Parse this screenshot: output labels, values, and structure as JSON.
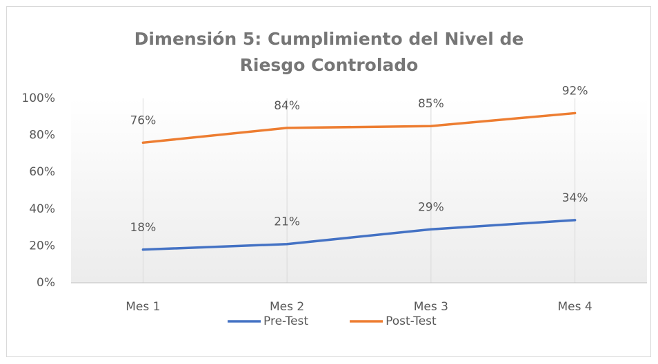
{
  "chart_data": {
    "type": "line",
    "title": "Dimensión 5: Cumplimiento del Nivel de Riesgo Controlado",
    "categories": [
      "Mes 1",
      "Mes 2",
      "Mes 3",
      "Mes 4"
    ],
    "series": [
      {
        "name": "Pre-Test",
        "color": "#4472c4",
        "values": [
          18,
          21,
          29,
          34
        ],
        "value_labels": [
          "18%",
          "21%",
          "29%",
          "34%"
        ]
      },
      {
        "name": "Post-Test",
        "color": "#ed7d31",
        "values": [
          76,
          84,
          85,
          92
        ],
        "value_labels": [
          "76%",
          "84%",
          "85%",
          "92%"
        ]
      }
    ],
    "ylim": [
      0,
      100
    ],
    "yticks": [
      {
        "value": 0,
        "label": "0%"
      },
      {
        "value": 20,
        "label": "20%"
      },
      {
        "value": 40,
        "label": "40%"
      },
      {
        "value": 60,
        "label": "60%"
      },
      {
        "value": 80,
        "label": "80%"
      },
      {
        "value": 100,
        "label": "100%"
      }
    ],
    "grid": "x",
    "legend": "bottom"
  }
}
